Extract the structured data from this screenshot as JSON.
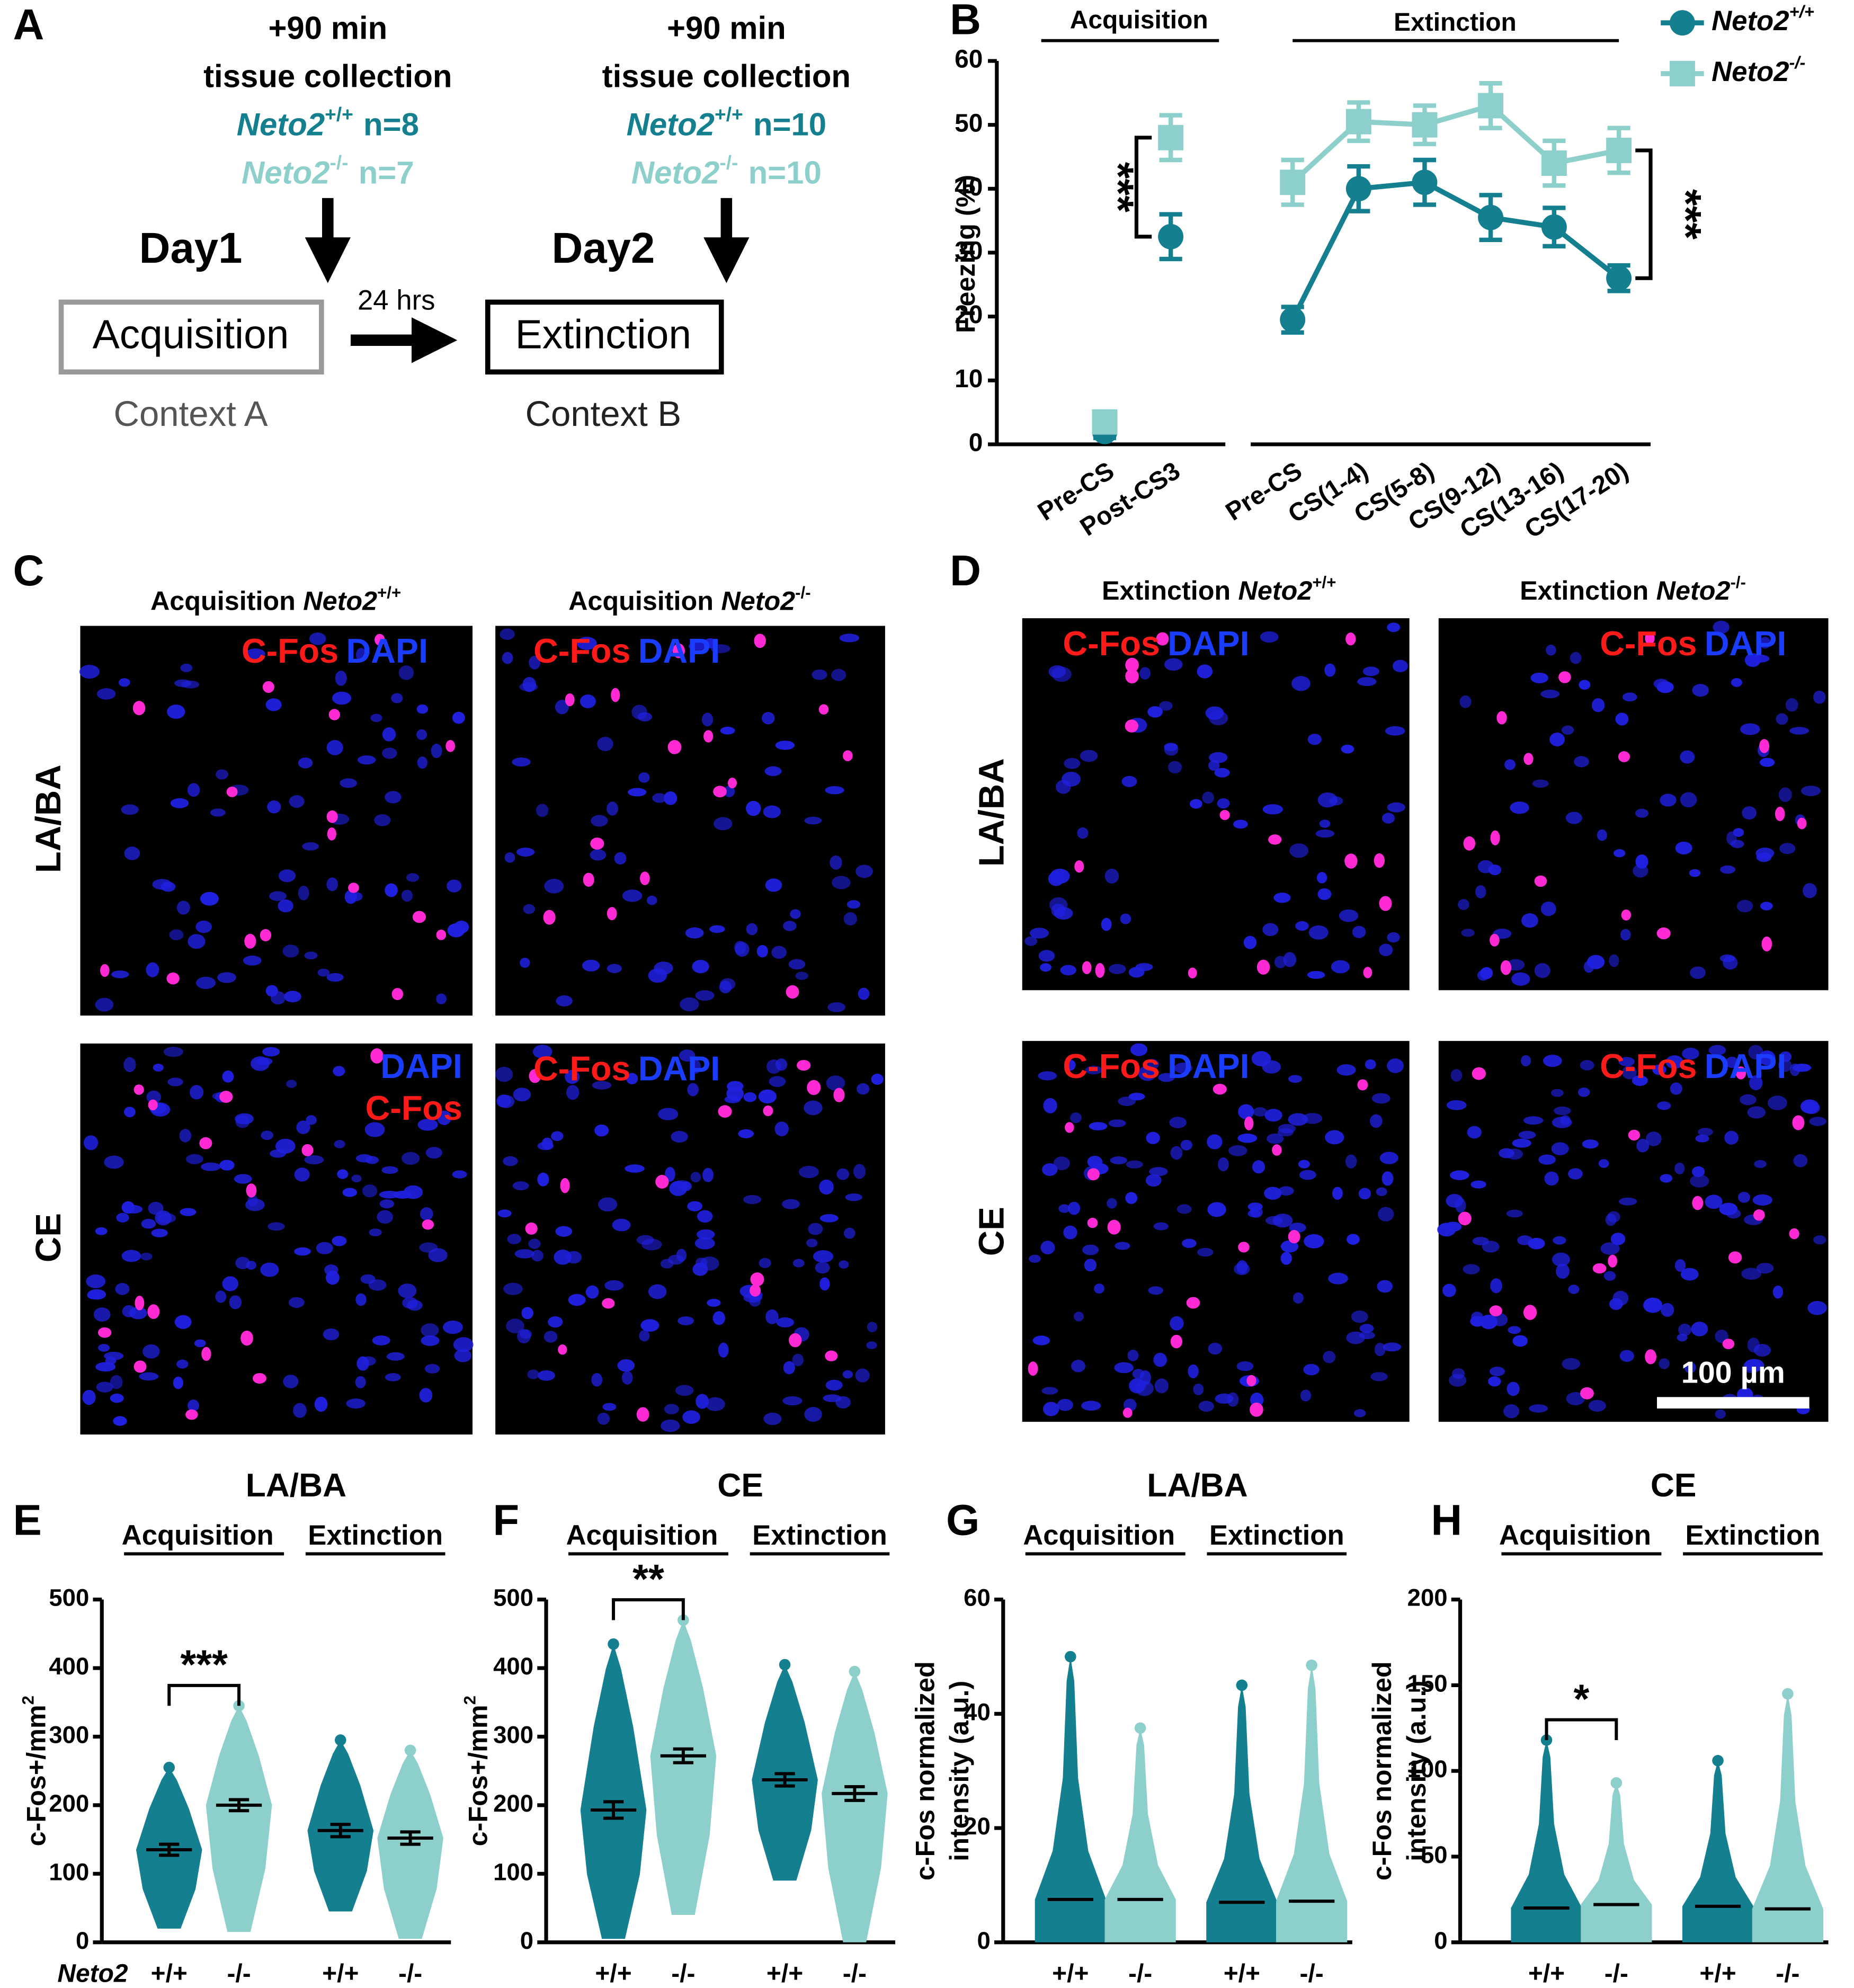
{
  "panel_a": {
    "label": "A",
    "interval": "24 hrs",
    "columns": [
      {
        "time": "+90 min",
        "collection": "tissue collection",
        "groups": [
          {
            "gene": "Neto2",
            "genotype": "+/+",
            "n": "n=8"
          },
          {
            "gene": "Neto2",
            "genotype": "-/-",
            "n": "n=7"
          }
        ],
        "day": "Day1",
        "session": "Acquisition",
        "context": "Context A"
      },
      {
        "time": "+90 min",
        "collection": "tissue collection",
        "groups": [
          {
            "gene": "Neto2",
            "genotype": "+/+",
            "n": "n=10"
          },
          {
            "gene": "Neto2",
            "genotype": "-/-",
            "n": "n=10"
          }
        ],
        "day": "Day2",
        "session": "Extinction",
        "context": "Context B"
      }
    ]
  },
  "images": [
    {
      "panel": "C",
      "columns": [
        {
          "prefix": "Acquisition",
          "gene": "Neto2",
          "genotype": "+/+"
        },
        {
          "prefix": "Acquisition",
          "gene": "Neto2",
          "genotype": "-/-"
        }
      ],
      "rows": [
        "LA/BA",
        "CE"
      ],
      "fos": "C-Fos",
      "dapi": "DAPI"
    },
    {
      "panel": "D",
      "columns": [
        {
          "prefix": "Extinction",
          "gene": "Neto2",
          "genotype": "+/+"
        },
        {
          "prefix": "Extinction",
          "gene": "Neto2",
          "genotype": "-/-"
        }
      ],
      "rows": [
        "LA/BA",
        "CE"
      ],
      "fos": "C-Fos",
      "dapi": "DAPI",
      "scale_bar": "100 µm"
    }
  ],
  "chart_data": [
    {
      "panel": "B",
      "type": "line",
      "title": "Acquisition",
      "ylabel": "Freezing (%)",
      "connect": false,
      "categories": [
        "Pre-CS",
        "Post-CS3"
      ],
      "series": [
        {
          "name": "Neto2",
          "sup": "+/+",
          "color": "#137f8f",
          "marker": "circle",
          "values": [
            2,
            32.5
          ],
          "errors": [
            1,
            3.5
          ]
        },
        {
          "name": "Neto2",
          "sup": "-/-",
          "color": "#8ccfcb",
          "marker": "square",
          "values": [
            3.5,
            48
          ],
          "errors": [
            1,
            3.5
          ]
        }
      ],
      "ylim": [
        0,
        60
      ],
      "yticks": [
        0,
        10,
        20,
        30,
        40,
        50,
        60
      ],
      "significance": "***"
    },
    {
      "type": "line",
      "title": "Extinction",
      "connect": true,
      "legend": "top-right",
      "categories": [
        "Pre-CS",
        "CS(1-4)",
        "CS(5-8)",
        "CS(9-12)",
        "CS(13-16)",
        "CS(17-20)"
      ],
      "series": [
        {
          "name": "Neto2",
          "sup": "+/+",
          "color": "#137f8f",
          "marker": "circle",
          "values": [
            19.5,
            40,
            41,
            35.5,
            34,
            26
          ],
          "errors": [
            2,
            3.5,
            3.5,
            3.5,
            3,
            2
          ]
        },
        {
          "name": "Neto2",
          "sup": "-/-",
          "color": "#8ccfcb",
          "marker": "square",
          "values": [
            41,
            50.5,
            50,
            53,
            44,
            46
          ],
          "errors": [
            3.5,
            3,
            3,
            3.5,
            3.5,
            3.5
          ]
        }
      ],
      "ylim": [
        0,
        60
      ],
      "significance": "***"
    },
    {
      "panel": "E",
      "type": "dot",
      "title": "LA/BA",
      "groups": [
        "Acquisition",
        "Extinction"
      ],
      "x_label": "Neto2",
      "categories": [
        "+/+",
        "-/-",
        "+/+",
        "-/-"
      ],
      "ylabel": "c-Fos+/mm",
      "ylabel_sup": "2",
      "colors": [
        "#137f8f",
        "#8ccfcb",
        "#137f8f",
        "#8ccfcb"
      ],
      "values": [
        135,
        200,
        163,
        152
      ],
      "errors": [
        8,
        8,
        9,
        9
      ],
      "min": [
        20,
        15,
        45,
        5
      ],
      "max": [
        255,
        345,
        295,
        280
      ],
      "ylim": [
        0,
        500
      ],
      "yticks": [
        0,
        100,
        200,
        300,
        400,
        500
      ],
      "significance": "***"
    },
    {
      "panel": "F",
      "type": "dot",
      "title": "CE",
      "groups": [
        "Acquisition",
        "Extinction"
      ],
      "categories": [
        "+/+",
        "-/-",
        "+/+",
        "-/-"
      ],
      "ylabel": "c-Fos+/mm",
      "ylabel_sup": "2",
      "colors": [
        "#137f8f",
        "#8ccfcb",
        "#137f8f",
        "#8ccfcb"
      ],
      "values": [
        193,
        272,
        237,
        217
      ],
      "errors": [
        12,
        10,
        9,
        10
      ],
      "min": [
        5,
        40,
        90,
        0
      ],
      "max": [
        435,
        470,
        405,
        395
      ],
      "ylim": [
        0,
        500
      ],
      "yticks": [
        0,
        100,
        200,
        300,
        400,
        500
      ],
      "significance": "**"
    },
    {
      "panel": "G",
      "type": "dot",
      "title": "LA/BA",
      "groups": [
        "Acquisition",
        "Extinction"
      ],
      "categories": [
        "+/+",
        "-/-",
        "+/+",
        "-/-"
      ],
      "ylabel": [
        "c-Fos normalized",
        "intensity (a.u.)"
      ],
      "colors": [
        "#137f8f",
        "#8ccfcb",
        "#137f8f",
        "#8ccfcb"
      ],
      "values": [
        7.5,
        7.5,
        7,
        7.2
      ],
      "min": [
        0,
        0,
        0,
        0
      ],
      "max": [
        50,
        37.5,
        45,
        48.5
      ],
      "ylim": [
        0,
        60
      ],
      "yticks": [
        0,
        20,
        40,
        60
      ]
    },
    {
      "panel": "H",
      "type": "dot",
      "title": "CE",
      "groups": [
        "Acquisition",
        "Extinction"
      ],
      "categories": [
        "+/+",
        "-/-",
        "+/+",
        "-/-"
      ],
      "ylabel": [
        "c-Fos normalized",
        "intensity (a.u.)"
      ],
      "colors": [
        "#137f8f",
        "#8ccfcb",
        "#137f8f",
        "#8ccfcb"
      ],
      "values": [
        20,
        22,
        21,
        19.5
      ],
      "min": [
        0,
        0,
        0,
        0
      ],
      "max": [
        118,
        93,
        106,
        145
      ],
      "ylim": [
        0,
        200
      ],
      "yticks": [
        0,
        50,
        100,
        150,
        200
      ],
      "significance": "*"
    }
  ]
}
